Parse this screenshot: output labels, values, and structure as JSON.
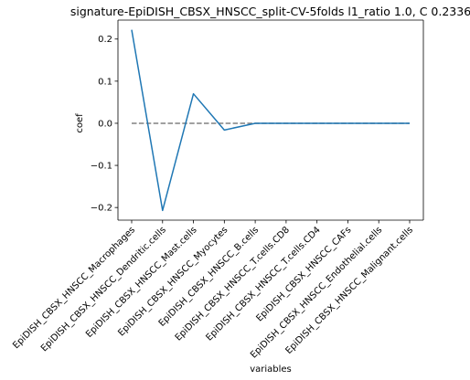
{
  "chart_data": {
    "type": "line",
    "title": "signature-EpiDISH_CBSX_HNSCC_split-CV-5folds l1_ratio 1.0, C 0.2336",
    "xlabel": "variables",
    "ylabel": "coef",
    "categories": [
      "EpiDISH_CBSX_HNSCC_Macrophages",
      "EpiDISH_CBSX_HNSCC_Dendritic.cells",
      "EpiDISH_CBSX_HNSCC_Mast.cells",
      "EpiDISH_CBSX_HNSCC_Myocytes",
      "EpiDISH_CBSX_HNSCC_B.cells",
      "EpiDISH_CBSX_HNSCC_T.cells.CD8",
      "EpiDISH_CBSX_HNSCC_T.cells.CD4",
      "EpiDISH_CBSX_HNSCC_CAFs",
      "EpiDISH_CBSX_HNSCC_Endothelial.cells",
      "EpiDISH_CBSX_HNSCC_Malignant.cells"
    ],
    "series": [
      {
        "values": [
          0.222,
          -0.207,
          0.07,
          -0.016,
          0.0,
          0.0,
          0.0,
          0.0,
          0.0,
          0.0
        ],
        "color": "#1f77b4"
      }
    ],
    "reference_line": {
      "y": 0.0,
      "style": "dashed",
      "color": "#808080"
    },
    "ylim": [
      -0.23,
      0.245
    ],
    "yticks": [
      -0.2,
      -0.1,
      0.0,
      0.1,
      0.2
    ],
    "ytick_labels": [
      "−0.2",
      "−0.1",
      "0.0",
      "0.1",
      "0.2"
    ],
    "grid": false,
    "legend": "none"
  }
}
